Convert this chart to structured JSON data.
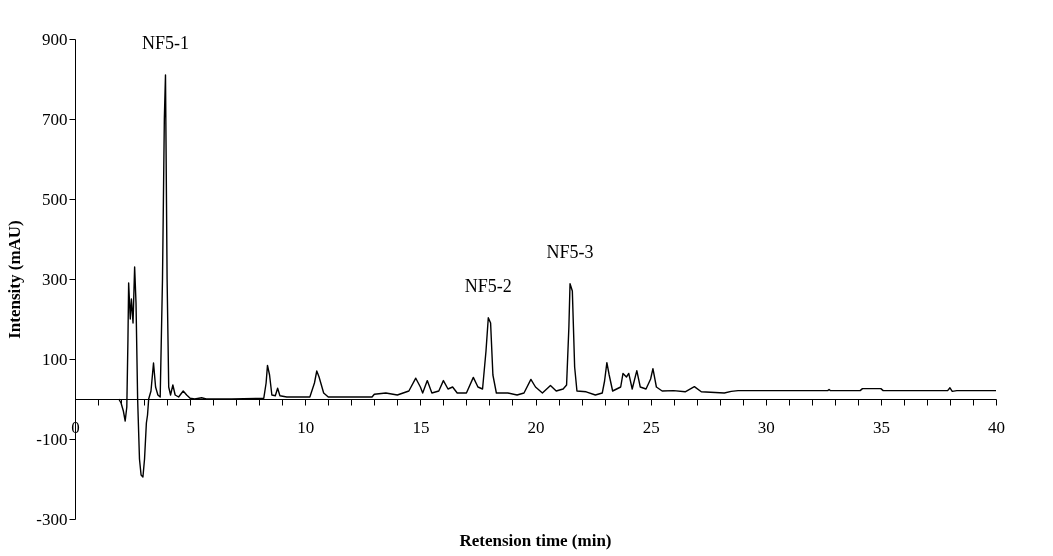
{
  "chart_data": {
    "type": "line",
    "xlabel": "Retension time (min)",
    "ylabel": "Intensity (mAU)",
    "xlim": [
      0,
      40
    ],
    "ylim": [
      -300,
      900
    ],
    "xticks": [
      0,
      {
        "value": 1,
        "label": null
      },
      {
        "value": 2,
        "label": null
      },
      {
        "value": 3,
        "label": null
      },
      {
        "value": 4,
        "label": null
      },
      5,
      {
        "value": 6,
        "label": null
      },
      {
        "value": 7,
        "label": null
      },
      {
        "value": 8,
        "label": null
      },
      {
        "value": 9,
        "label": null
      },
      10,
      {
        "value": 11,
        "label": null
      },
      {
        "value": 12,
        "label": null
      },
      {
        "value": 13,
        "label": null
      },
      {
        "value": 14,
        "label": null
      },
      15,
      {
        "value": 16,
        "label": null
      },
      {
        "value": 17,
        "label": null
      },
      {
        "value": 18,
        "label": null
      },
      {
        "value": 19,
        "label": null
      },
      20,
      {
        "value": 21,
        "label": null
      },
      {
        "value": 22,
        "label": null
      },
      {
        "value": 23,
        "label": null
      },
      {
        "value": 24,
        "label": null
      },
      25,
      {
        "value": 26,
        "label": null
      },
      {
        "value": 27,
        "label": null
      },
      {
        "value": 28,
        "label": null
      },
      {
        "value": 29,
        "label": null
      },
      30,
      {
        "value": 31,
        "label": null
      },
      {
        "value": 32,
        "label": null
      },
      {
        "value": 33,
        "label": null
      },
      {
        "value": 34,
        "label": null
      },
      35,
      {
        "value": 36,
        "label": null
      },
      {
        "value": 37,
        "label": null
      },
      {
        "value": 38,
        "label": null
      },
      {
        "value": 39,
        "label": null
      },
      40
    ],
    "yticks": [
      -300,
      -100,
      100,
      300,
      500,
      700,
      900
    ],
    "grid": false,
    "marker": "none",
    "line_style": "solid",
    "series": [
      {
        "color": "#000000",
        "x": [
          1.9,
          2.0,
          2.1,
          2.18,
          2.25,
          2.3,
          2.33,
          2.4,
          2.45,
          2.52,
          2.59,
          2.65,
          2.72,
          2.8,
          2.87,
          2.95,
          3.02,
          3.1,
          3.15,
          3.2,
          3.3,
          3.41,
          3.5,
          3.6,
          3.7,
          3.8,
          3.88,
          3.93,
          4.0,
          4.07,
          4.15,
          4.25,
          4.35,
          4.5,
          4.7,
          4.85,
          5.0,
          5.2,
          5.5,
          5.7,
          6.8,
          8.2,
          8.3,
          8.36,
          8.45,
          8.55,
          8.7,
          8.8,
          8.9,
          9.2,
          10.2,
          10.4,
          10.5,
          10.6,
          10.8,
          11.0,
          12.9,
          13.0,
          13.5,
          14.0,
          14.5,
          14.8,
          15.0,
          15.1,
          15.3,
          15.5,
          15.8,
          16.0,
          16.2,
          16.4,
          16.6,
          17.0,
          17.3,
          17.5,
          17.7,
          17.85,
          17.95,
          18.05,
          18.15,
          18.3,
          18.8,
          19.2,
          19.5,
          19.8,
          20.0,
          20.3,
          20.65,
          20.9,
          21.2,
          21.35,
          21.45,
          21.5,
          21.6,
          21.7,
          21.8,
          22.2,
          22.6,
          22.9,
          23.0,
          23.1,
          23.2,
          23.35,
          23.7,
          23.8,
          23.95,
          24.05,
          24.2,
          24.4,
          24.55,
          24.8,
          25.0,
          25.1,
          25.25,
          25.5,
          26.0,
          26.5,
          26.9,
          27.2,
          28.2,
          28.5,
          28.8,
          32.7,
          32.75,
          32.8,
          34.1,
          34.2,
          35.0,
          35.1,
          37.9,
          38.0,
          38.1,
          38.3,
          40.0
        ],
        "values": [
          0,
          -10,
          -30,
          -55,
          -20,
          150,
          290,
          200,
          250,
          190,
          330,
          240,
          0,
          -150,
          -190,
          -195,
          -150,
          -60,
          -40,
          0,
          20,
          90,
          30,
          10,
          5,
          300,
          700,
          810,
          300,
          30,
          10,
          35,
          10,
          5,
          20,
          10,
          2,
          0,
          3,
          0,
          0,
          2,
          40,
          84,
          60,
          10,
          8,
          27,
          8,
          5,
          5,
          40,
          70,
          55,
          15,
          5,
          5,
          12,
          15,
          10,
          20,
          52,
          30,
          15,
          46,
          15,
          20,
          46,
          25,
          30,
          15,
          15,
          54,
          30,
          25,
          120,
          203,
          190,
          60,
          15,
          15,
          10,
          15,
          49,
          30,
          15,
          34,
          20,
          25,
          35,
          180,
          288,
          270,
          80,
          20,
          18,
          10,
          15,
          45,
          91,
          60,
          20,
          30,
          64,
          55,
          64,
          25,
          71,
          30,
          25,
          50,
          76,
          30,
          20,
          21,
          18,
          31,
          18,
          15,
          19,
          21,
          21,
          24,
          21,
          21,
          26,
          26,
          21,
          21,
          28,
          19,
          21,
          21
        ]
      }
    ],
    "annotations": [
      {
        "text": "NF5-1",
        "x": 3.93,
        "y": 810
      },
      {
        "text": "NF5-2",
        "x": 17.95,
        "y": 203
      },
      {
        "text": "NF5-3",
        "x": 21.5,
        "y": 288
      }
    ]
  }
}
